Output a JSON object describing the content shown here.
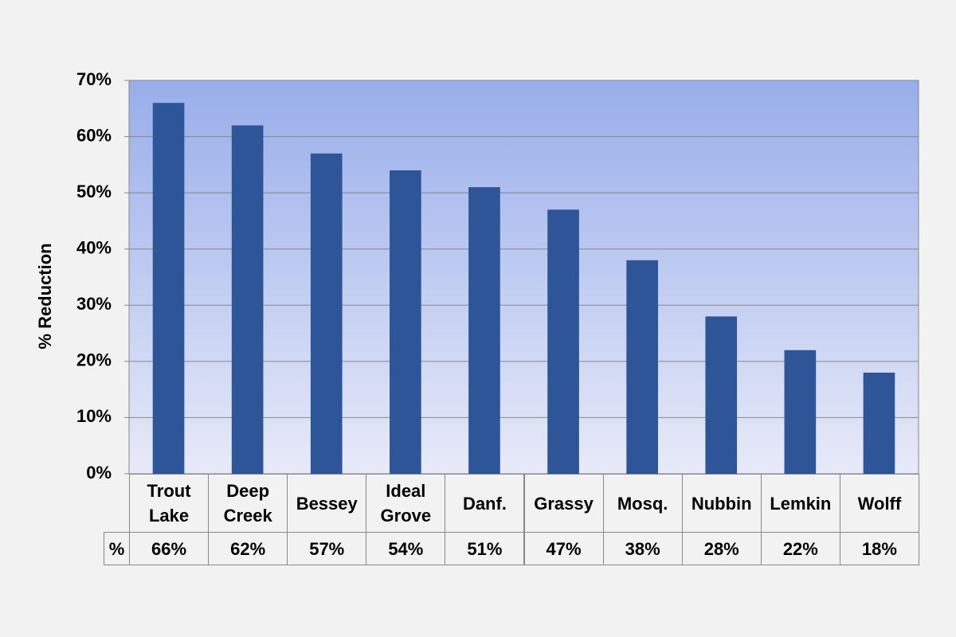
{
  "chart_data": {
    "type": "bar",
    "y_label": "% Reduction",
    "categories": [
      "Trout Lake",
      "Deep Creek",
      "Bessey",
      "Ideal Grove",
      "Danf.",
      "Grassy",
      "Mosq.",
      "Nubbin",
      "Lemkin",
      "Wolff"
    ],
    "values": [
      66,
      62,
      57,
      54,
      51,
      47,
      38,
      28,
      22,
      18
    ],
    "value_labels": [
      "66%",
      "62%",
      "57%",
      "54%",
      "51%",
      "47%",
      "38%",
      "28%",
      "22%",
      "18%"
    ],
    "table_row_label": "%",
    "color": "#2e5597",
    "ylim": [
      0,
      70
    ],
    "yticks": [
      {
        "value": 0,
        "label": "0%"
      },
      {
        "value": 10,
        "label": "10%"
      },
      {
        "value": 20,
        "label": "20%"
      },
      {
        "value": 30,
        "label": "30%"
      },
      {
        "value": 40,
        "label": "40%"
      },
      {
        "value": 50,
        "label": "50%"
      },
      {
        "value": 60,
        "label": "60%"
      },
      {
        "value": 70,
        "label": "70%"
      }
    ],
    "grid": true
  }
}
